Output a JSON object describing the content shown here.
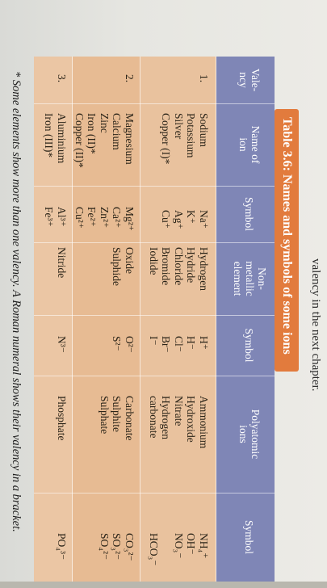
{
  "page": {
    "top_text": "valency in the next chapter.",
    "footnote": "* Some elements show more than one valency. A Roman numeral shows their valency in a bracket."
  },
  "table": {
    "title": "Table 3.6: Names and symbols of some ions",
    "headers": [
      "Vale-\nncy",
      "Name of\nion",
      "Symbol",
      "Non-\nmetallic\nelement",
      "Symbol",
      "Polyatomic\nions",
      "Symbol"
    ],
    "groups": [
      {
        "valency": "1.",
        "metal_names": "Sodium\nPotassium\nSilver\nCopper (I)*",
        "metal_symbols": "Na⁺\nK⁺\nAg⁺\nCu⁺",
        "nonmetal_names": "Hydrogen\nHydride\nChloride\nBromide\nIodide",
        "nonmetal_symbols": "H⁺\nH⁻\nCl⁻\nBr⁻\nI⁻",
        "poly_names": "Ammonium\nHydroxide\nNitrate\nHydrogen\ncarbonate",
        "poly_symbols": "NH₄⁺\nOH⁻\nNO₃⁻\n\nHCO₃⁻"
      },
      {
        "valency": "2.",
        "metal_names": "Magnesium\nCalcium\nZinc\nIron (II)*\nCopper (II)*",
        "metal_symbols": "Mg²⁺\nCa²⁺\nZn²⁺\nFe²⁺\nCu²⁺",
        "nonmetal_names": "Oxide\nSulphide",
        "nonmetal_symbols": "O²⁻\nS²⁻",
        "poly_names": "Carbonate\nSulphite\nSulphate",
        "poly_symbols": "CO₃²⁻\nSO₃²⁻\nSO₄²⁻"
      },
      {
        "valency": "3.",
        "metal_names": "Aluminium\nIron (III)*",
        "metal_symbols": "Al³⁺\nFe³⁺",
        "nonmetal_names": "Nitride",
        "nonmetal_symbols": "N³⁻",
        "poly_names": "Phosphate",
        "poly_symbols": "PO₄³⁻"
      }
    ]
  }
}
